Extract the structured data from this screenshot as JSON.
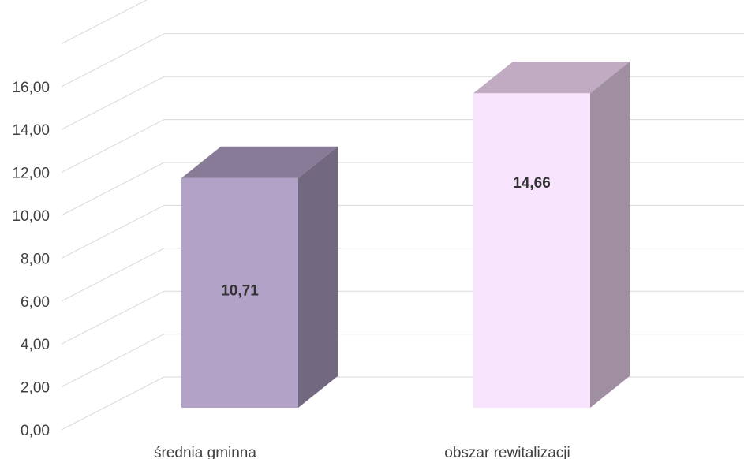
{
  "chart_data": {
    "type": "bar",
    "style": "3d-column",
    "categories": [
      "średnia gminna",
      "obszar rewitalizacji"
    ],
    "values": [
      10.71,
      14.66
    ],
    "value_labels": [
      "10,71",
      "14,66"
    ],
    "ylim": [
      0,
      16
    ],
    "y_ticks": [
      "0,00",
      "2,00",
      "4,00",
      "6,00",
      "8,00",
      "10,00",
      "12,00",
      "14,00",
      "16,00"
    ],
    "grid": true,
    "legend": "none",
    "colors": [
      {
        "front": "#b3a2c8",
        "side": "#726880",
        "top": "#877b97"
      },
      {
        "front": "#f9e4fd",
        "side": "#a08ea1",
        "top": "#c0abc2"
      }
    ],
    "gridline_color": "#d9d9d9"
  }
}
